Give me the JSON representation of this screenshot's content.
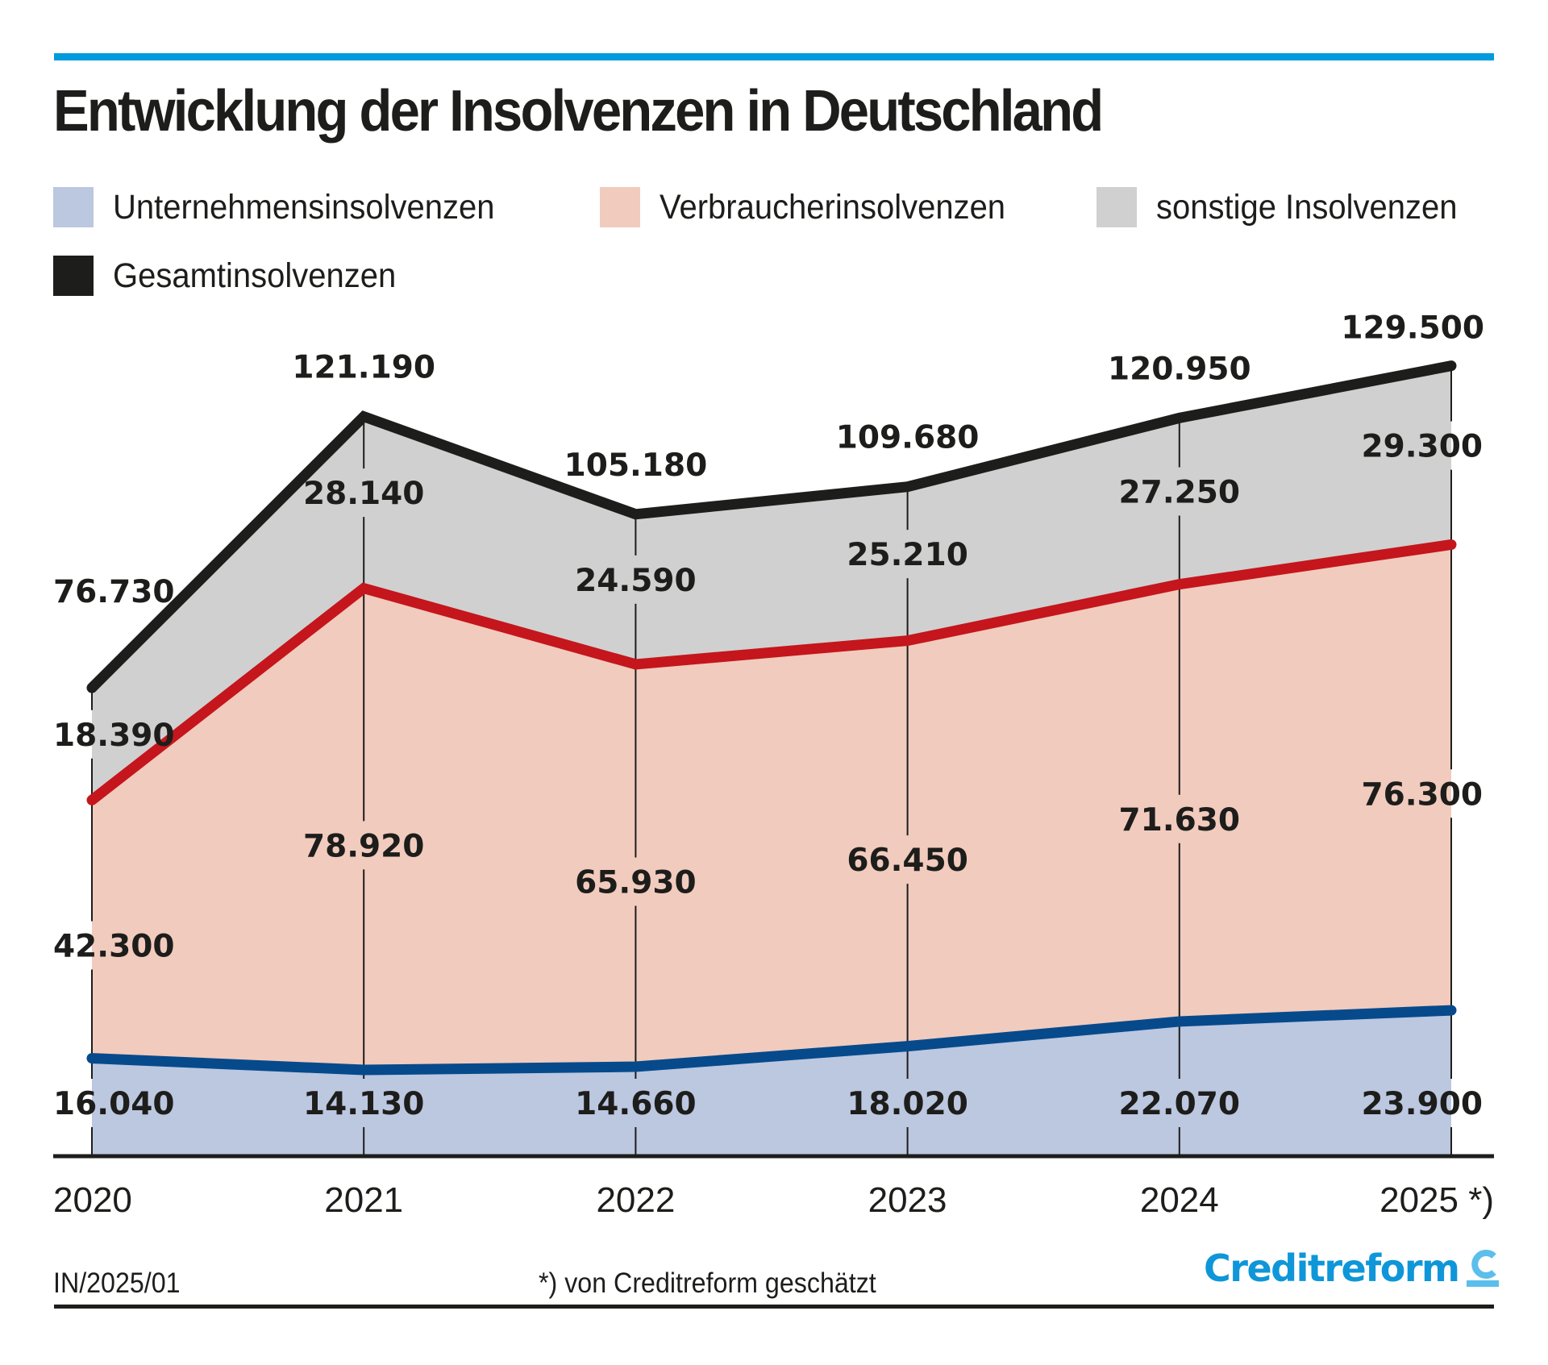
{
  "header": {
    "title": "Entwicklung der Insolvenzen in Deutschland",
    "accent_color": "#009bde"
  },
  "legend": [
    {
      "label": "Unternehmensinsolvenzen",
      "color": "#bcc7e0"
    },
    {
      "label": "Verbraucherinsolvenzen",
      "color": "#f1cbbd"
    },
    {
      "label": "sonstige Insolvenzen",
      "color": "#d0d0d0"
    },
    {
      "label": "Gesamtinsolvenzen",
      "color": "#1d1d1b"
    }
  ],
  "chart_data": {
    "type": "area",
    "stacked": true,
    "title": "Entwicklung der Insolvenzen in Deutschland",
    "xlabel": "",
    "ylabel": "",
    "categories": [
      "2020",
      "2021",
      "2022",
      "2023",
      "2024",
      "2025 *)"
    ],
    "series": [
      {
        "name": "Unternehmensinsolvenzen",
        "fill": "#bcc7e0",
        "line": "#064a8c",
        "values": [
          16040,
          14130,
          14660,
          18020,
          22070,
          23900
        ],
        "labels": [
          "16.040",
          "14.130",
          "14.660",
          "18.020",
          "22.070",
          "23.900"
        ]
      },
      {
        "name": "Verbraucherinsolvenzen",
        "fill": "#f1cbbd",
        "line": "#c4161c",
        "values": [
          42300,
          78920,
          65930,
          66450,
          71630,
          76300
        ],
        "labels": [
          "42.300",
          "78.920",
          "65.930",
          "66.450",
          "71.630",
          "76.300"
        ]
      },
      {
        "name": "sonstige Insolvenzen",
        "fill": "#d0d0d0",
        "line": "#1d1d1b",
        "values": [
          18390,
          28140,
          24590,
          25210,
          27250,
          29300
        ],
        "labels": [
          "18.390",
          "28.140",
          "24.590",
          "25.210",
          "27.250",
          "29.300"
        ]
      }
    ],
    "totals": {
      "name": "Gesamtinsolvenzen",
      "values": [
        76730,
        121190,
        105180,
        109680,
        120950,
        129500
      ],
      "labels": [
        "76.730",
        "121.190",
        "105.180",
        "109.680",
        "120.950",
        "129.500"
      ]
    },
    "ylim": [
      0,
      130000
    ],
    "grid": false,
    "legend_position": "top-left"
  },
  "footer": {
    "code": "IN/2025/01",
    "note": "*) von Creditreform geschätzt",
    "brand": "Creditreform",
    "brand_color": "#0e96d9",
    "brand_mark_color": "#5bbeeb"
  }
}
